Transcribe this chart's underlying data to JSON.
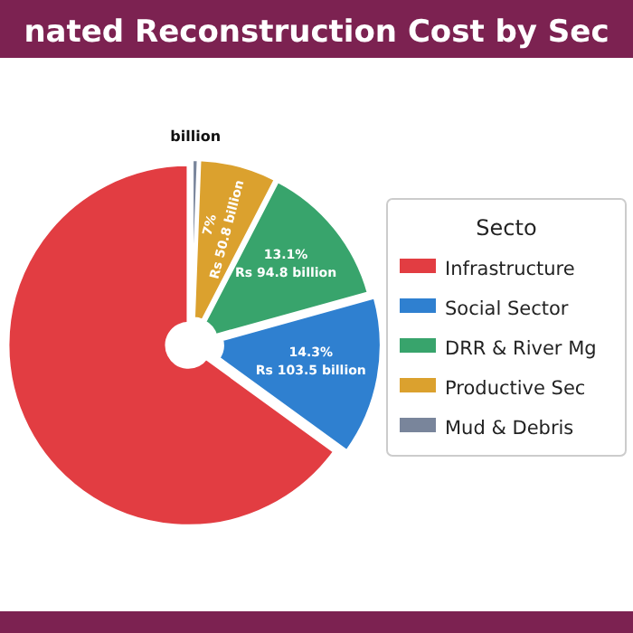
{
  "chart_data": {
    "type": "pie",
    "title": "nated Reconstruction Cost by Sec",
    "categories": [
      "Infrastructure",
      "Social Sector",
      "DRR & River Mg",
      "Productive Sec",
      "Mud & Debris"
    ],
    "values": [
      65.0,
      14.3,
      13.1,
      7,
      0.6
    ],
    "colors": [
      "#e23d42",
      "#2f80d0",
      "#38a46c",
      "#dba12e",
      "#79859b"
    ],
    "value_labels": [
      null,
      "14.3%\nRs 103.5 billion",
      "13.1%\nRs 94.8 billion",
      "7%\nRs 50.8 billion",
      "billion"
    ],
    "legend_title": "Secto",
    "legend": "right"
  }
}
